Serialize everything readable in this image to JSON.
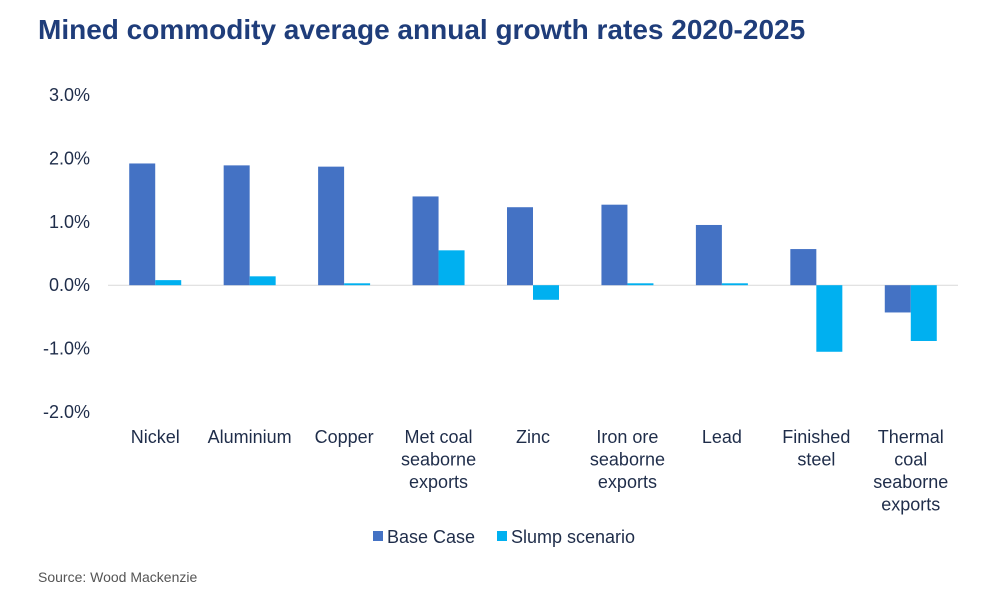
{
  "chart_data": {
    "type": "bar",
    "title": "Mined commodity average annual growth rates 2020-2025",
    "categories": [
      [
        "Nickel"
      ],
      [
        "Aluminium"
      ],
      [
        "Copper"
      ],
      [
        "Met coal",
        "seaborne",
        "exports"
      ],
      [
        "Zinc"
      ],
      [
        "Iron ore",
        "seaborne",
        "exports"
      ],
      [
        "Lead"
      ],
      [
        "Finished",
        "steel"
      ],
      [
        "Thermal",
        "coal",
        "seaborne",
        "exports"
      ]
    ],
    "series": [
      {
        "name": "Base Case",
        "color": "#4472c4",
        "values": [
          1.92,
          1.89,
          1.87,
          1.4,
          1.23,
          1.27,
          0.95,
          0.57,
          -0.43
        ]
      },
      {
        "name": "Slump scenario",
        "color": "#00b0f0",
        "values": [
          0.08,
          0.14,
          0.03,
          0.55,
          -0.23,
          0.03,
          0.03,
          -1.05,
          -0.88
        ]
      }
    ],
    "ylim": [
      -2.0,
      3.0
    ],
    "yticks": [
      "3.0%",
      "2.0%",
      "1.0%",
      "0.0%",
      "-1.0%",
      "-2.0%"
    ],
    "ytick_values": [
      3.0,
      2.0,
      1.0,
      0.0,
      -1.0,
      -2.0
    ],
    "xlabel": "",
    "ylabel": "",
    "legend_position": "bottom",
    "grid": false
  },
  "source": "Source: Wood Mackenzie"
}
